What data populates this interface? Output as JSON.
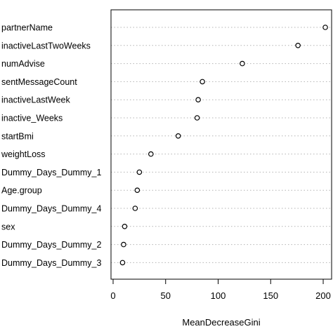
{
  "chart_data": {
    "type": "scatter",
    "title": "",
    "xlabel": "MeanDecreaseGini",
    "ylabel": "",
    "xlim": [
      -2,
      208
    ],
    "xticks": [
      0,
      50,
      100,
      150,
      200
    ],
    "grid": "dotted horizontal",
    "legend": "none",
    "categories": [
      "partnerName",
      "inactiveLastTwoWeeks",
      "numAdvise",
      "sentMessageCount",
      "inactiveLastWeek",
      "inactive_Weeks",
      "startBmi",
      "weightLoss",
      "Dummy_Days_Dummy_1",
      "Age.group",
      "Dummy_Days_Dummy_4",
      "sex",
      "Dummy_Days_Dummy_2",
      "Dummy_Days_Dummy_3"
    ],
    "values": [
      202,
      176,
      123,
      85,
      81,
      80,
      62,
      36,
      25,
      23,
      21,
      11,
      10,
      9
    ],
    "marker_color": "#000000",
    "grid_color": "#b3b3b3"
  }
}
